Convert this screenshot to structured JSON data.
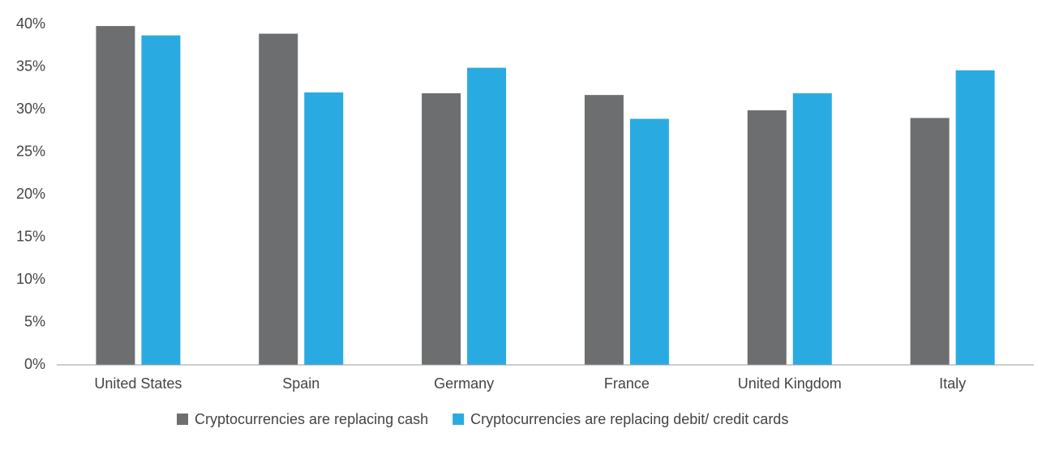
{
  "chart_data": {
    "type": "bar",
    "categories": [
      "United States",
      "Spain",
      "Germany",
      "France",
      "United Kingdom",
      "Italy"
    ],
    "series": [
      {
        "name": "Cryptocurrencies are replacing cash",
        "color": "#6d6e70",
        "values": [
          39.8,
          38.9,
          31.9,
          31.7,
          29.9,
          29.0
        ]
      },
      {
        "name": "Cryptocurrencies are replacing debit/ credit cards",
        "color": "#29abe2",
        "values": [
          38.7,
          32.0,
          34.9,
          28.9,
          31.9,
          34.6
        ]
      }
    ],
    "ylim": [
      0,
      40
    ],
    "yticks": [
      {
        "value": 0,
        "label": "0%"
      },
      {
        "value": 5,
        "label": "5%"
      },
      {
        "value": 10,
        "label": "10%"
      },
      {
        "value": 15,
        "label": "15%"
      },
      {
        "value": 20,
        "label": "20%"
      },
      {
        "value": 25,
        "label": "25%"
      },
      {
        "value": 30,
        "label": "30%"
      },
      {
        "value": 35,
        "label": "35%"
      },
      {
        "value": 40,
        "label": "40%"
      }
    ],
    "grid": false
  }
}
